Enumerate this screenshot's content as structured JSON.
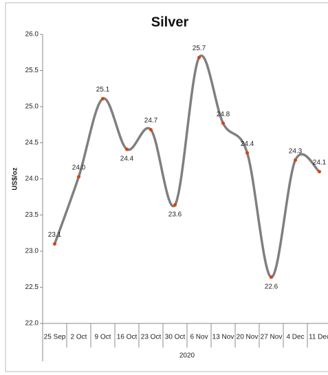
{
  "chart_data": {
    "type": "line",
    "title": "Silver",
    "ylabel": "US$/oz",
    "xlabel": "2020",
    "categories": [
      "25 Sep",
      "2 Oct",
      "9 Oct",
      "16 Oct",
      "23 Oct",
      "30 Oct",
      "6 Nov",
      "13 Nov",
      "20 Nov",
      "27 Nov",
      "4 Dec",
      "11 Dec"
    ],
    "series": [
      {
        "name": "Silver",
        "color": "#7f7f7f",
        "marker_color": "#e0400c",
        "values": [
          23.1,
          24.03,
          25.11,
          24.41,
          24.68,
          23.64,
          25.68,
          24.77,
          24.36,
          22.64,
          24.26,
          24.1
        ],
        "value_labels": [
          "23.1",
          "24.0",
          "25.1",
          "24.4",
          "24.7",
          "23.6",
          "25.7",
          "24.8",
          "24.4",
          "22.6",
          "24.3",
          "24.1"
        ]
      }
    ],
    "ylim": [
      22,
      26
    ],
    "yticks": [
      {
        "value": 22,
        "label": "22.0"
      },
      {
        "value": 22.5,
        "label": "22.5"
      },
      {
        "value": 23,
        "label": "23.0"
      },
      {
        "value": 23.5,
        "label": "23.5"
      },
      {
        "value": 24,
        "label": "24.0"
      },
      {
        "value": 24.5,
        "label": "24.5"
      },
      {
        "value": 25,
        "label": "25.0"
      },
      {
        "value": 25.5,
        "label": "25.5"
      },
      {
        "value": 26,
        "label": "26.0"
      }
    ],
    "grid": false,
    "smooth": true
  }
}
